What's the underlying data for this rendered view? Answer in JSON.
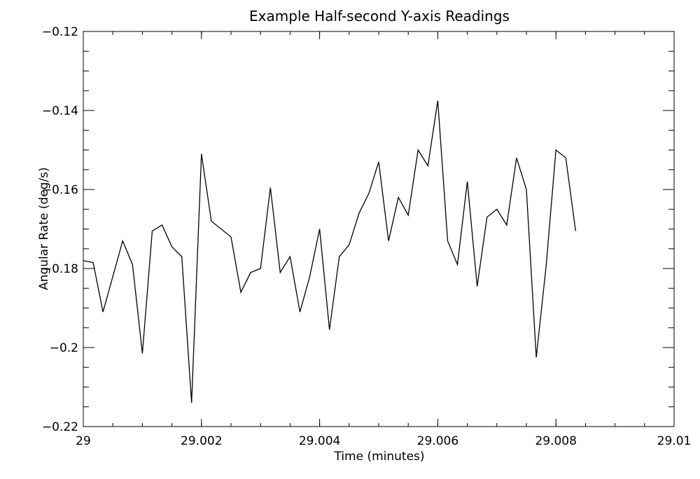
{
  "chart_data": {
    "type": "line",
    "title": "Example Half-second Y-axis Readings",
    "xlabel": "Time (minutes)",
    "ylabel": "Angular Rate (deg/s)",
    "xlim": [
      29.0,
      29.01
    ],
    "ylim": [
      -0.22,
      -0.12
    ],
    "x_ticks": [
      29.0,
      29.002,
      29.004,
      29.006,
      29.008,
      29.01
    ],
    "x_tick_labels": [
      "29",
      "29.002",
      "29.004",
      "29.006",
      "29.008",
      "29.01"
    ],
    "x_minor_step": 0.0005,
    "y_ticks": [
      -0.22,
      -0.2,
      -0.18,
      -0.16,
      -0.14,
      -0.12
    ],
    "y_tick_labels": [
      "−0.22",
      "−0.2",
      "−0.18",
      "−0.16",
      "−0.14",
      "−0.12"
    ],
    "y_minor_step": 0.005,
    "grid": false,
    "series": [
      {
        "x": [
          29.0,
          29.000167,
          29.000333,
          29.0005,
          29.000667,
          29.000833,
          29.001,
          29.001167,
          29.001333,
          29.0015,
          29.001667,
          29.001833,
          29.002,
          29.002167,
          29.002333,
          29.0025,
          29.002667,
          29.002833,
          29.003,
          29.003167,
          29.003333,
          29.0035,
          29.003667,
          29.003833,
          29.004,
          29.004167,
          29.004333,
          29.0045,
          29.004667,
          29.004833,
          29.005,
          29.005167,
          29.005333,
          29.0055,
          29.005667,
          29.005833,
          29.006,
          29.006167,
          29.006333,
          29.0065,
          29.006667,
          29.006833,
          29.007,
          29.007167,
          29.007333,
          29.0075,
          29.007667,
          29.007833,
          29.008,
          29.008167,
          29.008333
        ],
        "y": [
          -0.178,
          -0.1785,
          -0.191,
          -0.182,
          -0.173,
          -0.179,
          -0.2015,
          -0.1705,
          -0.169,
          -0.1745,
          -0.177,
          -0.214,
          -0.151,
          -0.168,
          -0.17,
          -0.172,
          -0.186,
          -0.181,
          -0.18,
          -0.1595,
          -0.181,
          -0.177,
          -0.191,
          -0.182,
          -0.17,
          -0.1955,
          -0.177,
          -0.174,
          -0.166,
          -0.161,
          -0.153,
          -0.173,
          -0.162,
          -0.1665,
          -0.15,
          -0.154,
          -0.1375,
          -0.173,
          -0.179,
          -0.158,
          -0.1845,
          -0.167,
          -0.165,
          -0.169,
          -0.152,
          -0.16,
          -0.2025,
          -0.1795,
          -0.15,
          -0.152,
          -0.1705
        ]
      }
    ]
  }
}
